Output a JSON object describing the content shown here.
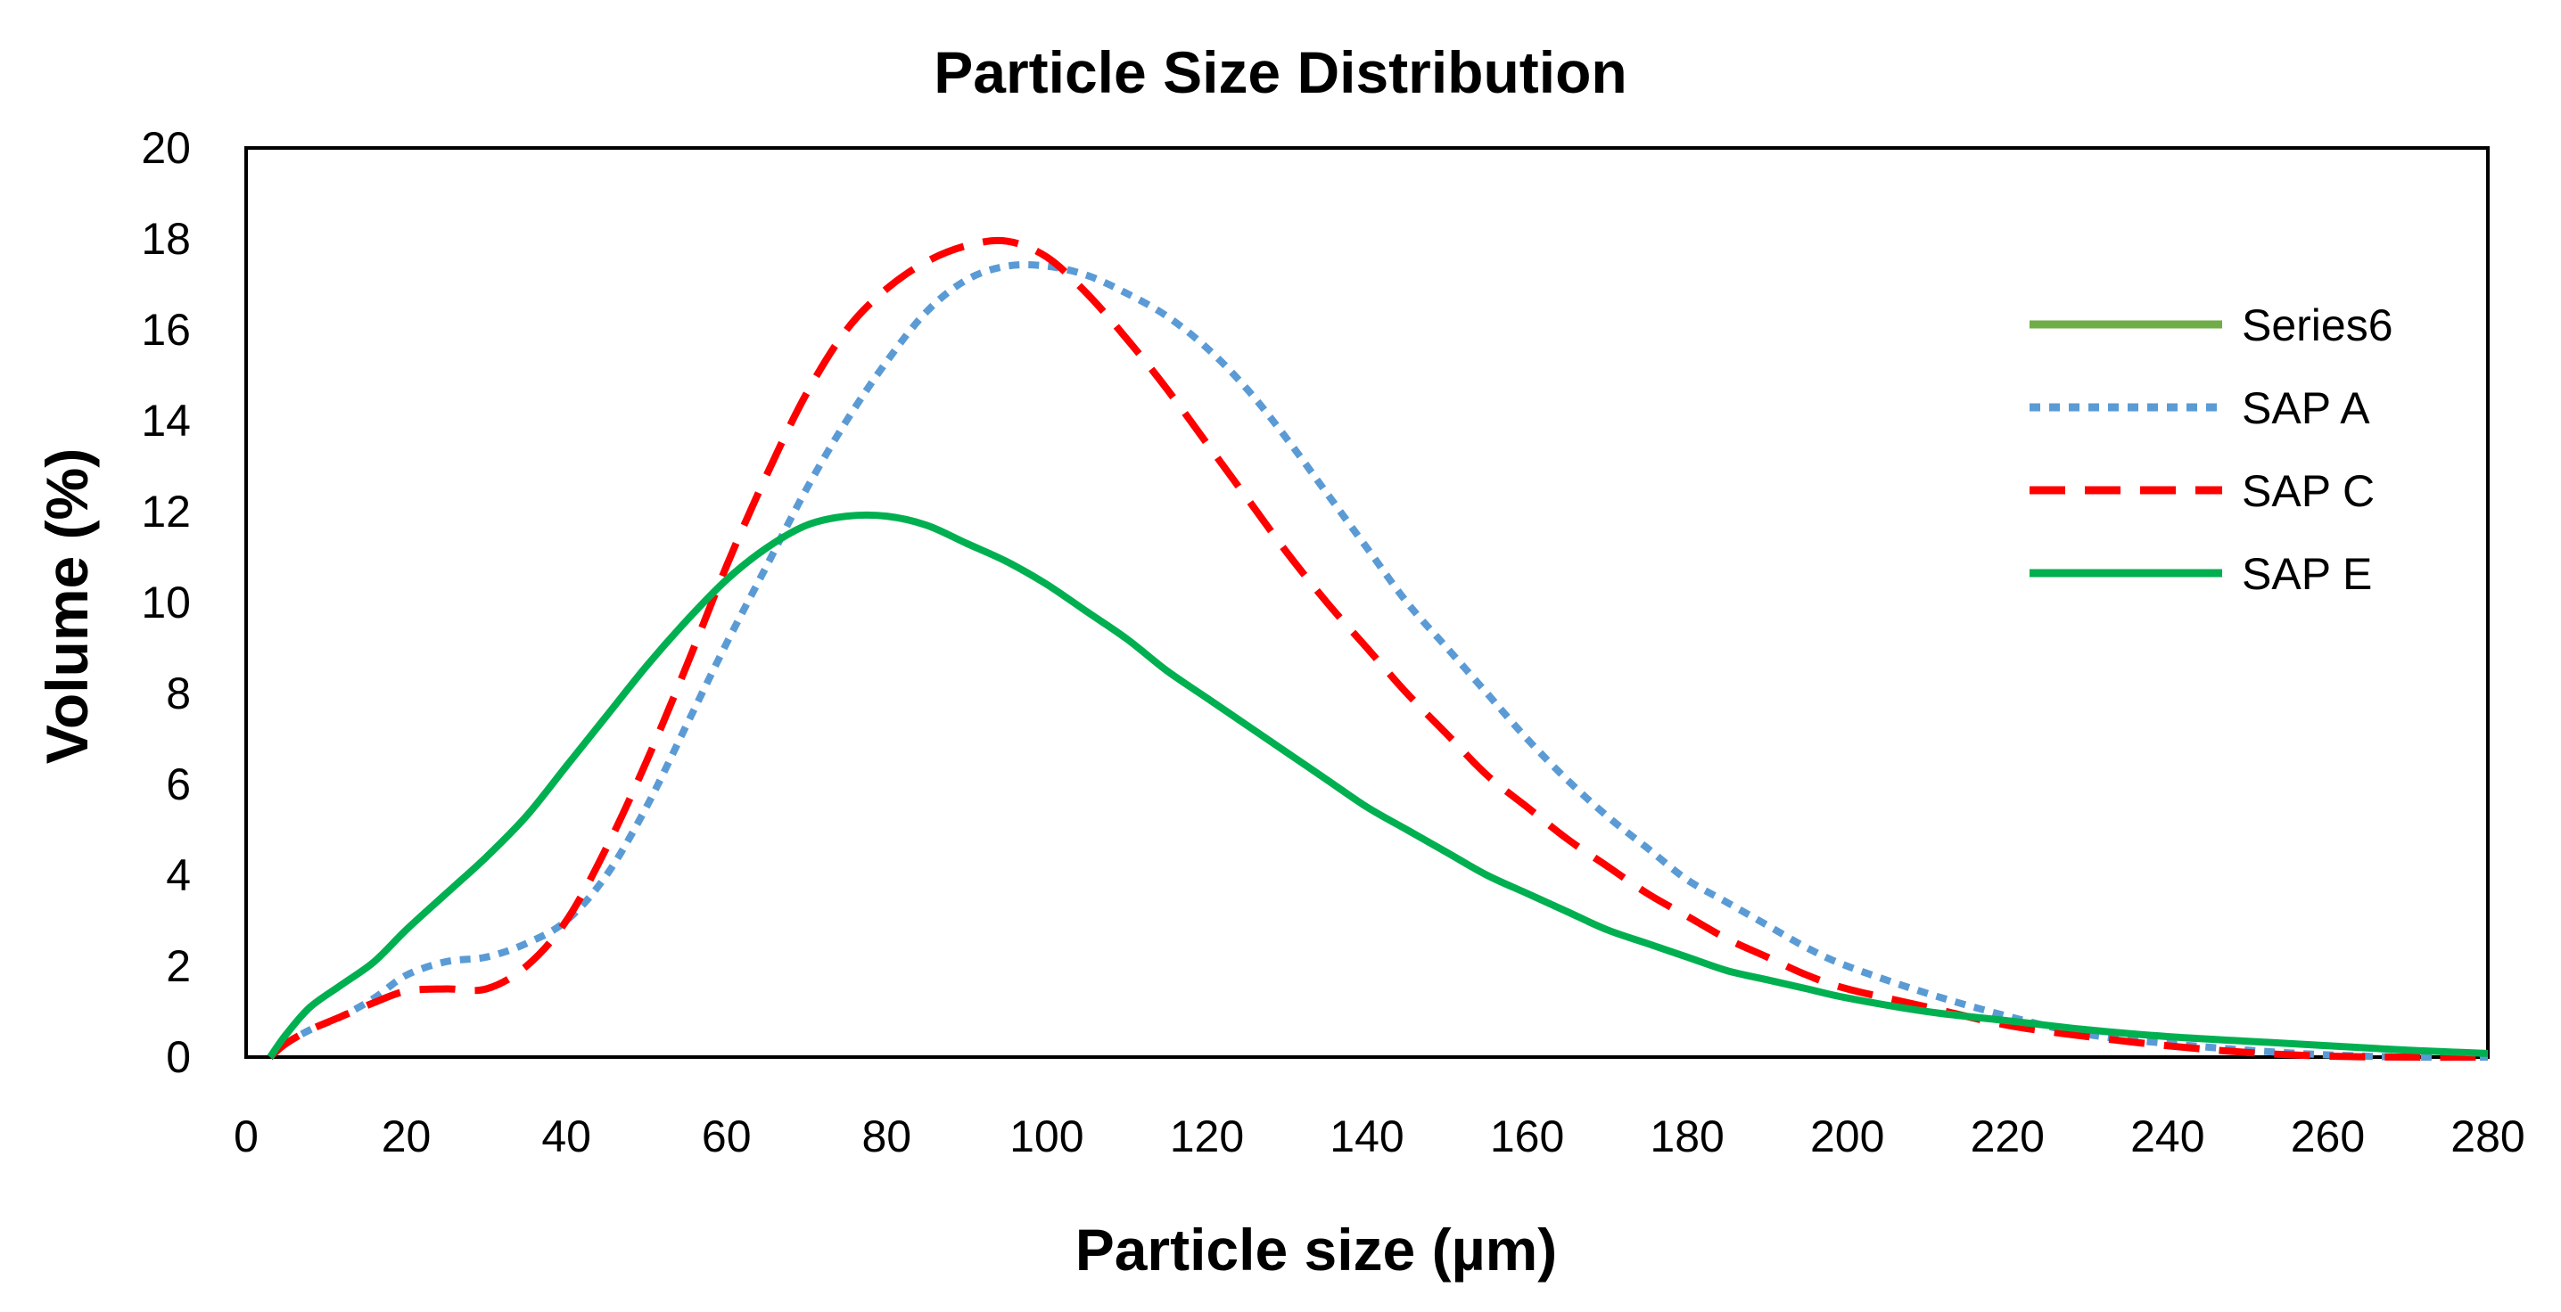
{
  "chart_data": {
    "type": "line",
    "title": "Particle Size Distribution",
    "xlabel": "Particle size (µm)",
    "ylabel": "Volume (%)",
    "xlim": [
      0,
      280
    ],
    "ylim": [
      0,
      20
    ],
    "xticks": [
      "0",
      "20",
      "40",
      "60",
      "80",
      "100",
      "120",
      "140",
      "160",
      "180",
      "200",
      "220",
      "240",
      "260",
      "280"
    ],
    "yticks": [
      "0",
      "2",
      "4",
      "6",
      "8",
      "10",
      "12",
      "14",
      "16",
      "18",
      "20"
    ],
    "grid": false,
    "legend_position": "right",
    "series": [
      {
        "name": "Series6",
        "color": "#70ad47",
        "style": "solid",
        "points": []
      },
      {
        "name": "SAP A",
        "color": "#5b9bd5",
        "style": "dotted",
        "points": [
          [
            3,
            0
          ],
          [
            5,
            0.3
          ],
          [
            8,
            0.6
          ],
          [
            12,
            0.9
          ],
          [
            16,
            1.3
          ],
          [
            20,
            1.8
          ],
          [
            25,
            2.1
          ],
          [
            30,
            2.2
          ],
          [
            35,
            2.5
          ],
          [
            40,
            3.0
          ],
          [
            45,
            4.0
          ],
          [
            50,
            5.5
          ],
          [
            55,
            7.3
          ],
          [
            60,
            9.1
          ],
          [
            65,
            10.8
          ],
          [
            70,
            12.5
          ],
          [
            75,
            14.0
          ],
          [
            80,
            15.3
          ],
          [
            85,
            16.4
          ],
          [
            90,
            17.1
          ],
          [
            95,
            17.4
          ],
          [
            100,
            17.4
          ],
          [
            105,
            17.2
          ],
          [
            110,
            16.8
          ],
          [
            115,
            16.3
          ],
          [
            120,
            15.6
          ],
          [
            125,
            14.7
          ],
          [
            130,
            13.6
          ],
          [
            135,
            12.4
          ],
          [
            140,
            11.2
          ],
          [
            145,
            10.0
          ],
          [
            150,
            9.0
          ],
          [
            155,
            8.0
          ],
          [
            160,
            7.0
          ],
          [
            165,
            6.1
          ],
          [
            170,
            5.3
          ],
          [
            175,
            4.6
          ],
          [
            180,
            3.9
          ],
          [
            185,
            3.4
          ],
          [
            190,
            2.9
          ],
          [
            195,
            2.4
          ],
          [
            200,
            2.0
          ],
          [
            210,
            1.4
          ],
          [
            220,
            0.9
          ],
          [
            230,
            0.5
          ],
          [
            240,
            0.3
          ],
          [
            250,
            0.15
          ],
          [
            260,
            0.05
          ],
          [
            270,
            0
          ],
          [
            280,
            0
          ]
        ]
      },
      {
        "name": "SAP C",
        "color": "#ff0000",
        "style": "dashed",
        "points": [
          [
            3,
            0
          ],
          [
            5,
            0.3
          ],
          [
            8,
            0.6
          ],
          [
            12,
            0.9
          ],
          [
            16,
            1.2
          ],
          [
            20,
            1.45
          ],
          [
            25,
            1.5
          ],
          [
            30,
            1.5
          ],
          [
            35,
            2.0
          ],
          [
            40,
            3.0
          ],
          [
            45,
            4.6
          ],
          [
            50,
            6.5
          ],
          [
            55,
            8.6
          ],
          [
            60,
            10.8
          ],
          [
            65,
            12.8
          ],
          [
            70,
            14.6
          ],
          [
            75,
            16.0
          ],
          [
            80,
            16.9
          ],
          [
            85,
            17.5
          ],
          [
            90,
            17.85
          ],
          [
            95,
            17.95
          ],
          [
            100,
            17.6
          ],
          [
            105,
            16.8
          ],
          [
            110,
            15.8
          ],
          [
            115,
            14.7
          ],
          [
            120,
            13.5
          ],
          [
            125,
            12.3
          ],
          [
            130,
            11.1
          ],
          [
            135,
            10.0
          ],
          [
            140,
            9.0
          ],
          [
            145,
            8.0
          ],
          [
            150,
            7.1
          ],
          [
            155,
            6.2
          ],
          [
            160,
            5.5
          ],
          [
            165,
            4.8
          ],
          [
            170,
            4.2
          ],
          [
            175,
            3.6
          ],
          [
            180,
            3.1
          ],
          [
            185,
            2.6
          ],
          [
            190,
            2.2
          ],
          [
            195,
            1.8
          ],
          [
            200,
            1.5
          ],
          [
            210,
            1.1
          ],
          [
            220,
            0.7
          ],
          [
            230,
            0.45
          ],
          [
            240,
            0.25
          ],
          [
            250,
            0.1
          ],
          [
            260,
            0.02
          ],
          [
            270,
            0
          ],
          [
            280,
            0
          ]
        ]
      },
      {
        "name": "SAP E",
        "color": "#00b050",
        "style": "solid",
        "points": [
          [
            3,
            0
          ],
          [
            5,
            0.5
          ],
          [
            8,
            1.1
          ],
          [
            12,
            1.6
          ],
          [
            16,
            2.1
          ],
          [
            20,
            2.8
          ],
          [
            25,
            3.6
          ],
          [
            30,
            4.4
          ],
          [
            35,
            5.3
          ],
          [
            40,
            6.4
          ],
          [
            45,
            7.5
          ],
          [
            50,
            8.6
          ],
          [
            55,
            9.6
          ],
          [
            60,
            10.5
          ],
          [
            65,
            11.2
          ],
          [
            70,
            11.7
          ],
          [
            75,
            11.9
          ],
          [
            80,
            11.9
          ],
          [
            85,
            11.7
          ],
          [
            90,
            11.3
          ],
          [
            95,
            10.9
          ],
          [
            100,
            10.4
          ],
          [
            105,
            9.8
          ],
          [
            110,
            9.2
          ],
          [
            115,
            8.5
          ],
          [
            120,
            7.9
          ],
          [
            125,
            7.3
          ],
          [
            130,
            6.7
          ],
          [
            135,
            6.1
          ],
          [
            140,
            5.5
          ],
          [
            145,
            5.0
          ],
          [
            150,
            4.5
          ],
          [
            155,
            4.0
          ],
          [
            160,
            3.6
          ],
          [
            165,
            3.2
          ],
          [
            170,
            2.8
          ],
          [
            175,
            2.5
          ],
          [
            180,
            2.2
          ],
          [
            185,
            1.9
          ],
          [
            190,
            1.7
          ],
          [
            195,
            1.5
          ],
          [
            200,
            1.3
          ],
          [
            210,
            1.0
          ],
          [
            220,
            0.8
          ],
          [
            230,
            0.6
          ],
          [
            240,
            0.45
          ],
          [
            250,
            0.35
          ],
          [
            260,
            0.25
          ],
          [
            270,
            0.15
          ],
          [
            280,
            0.08
          ]
        ]
      }
    ]
  }
}
